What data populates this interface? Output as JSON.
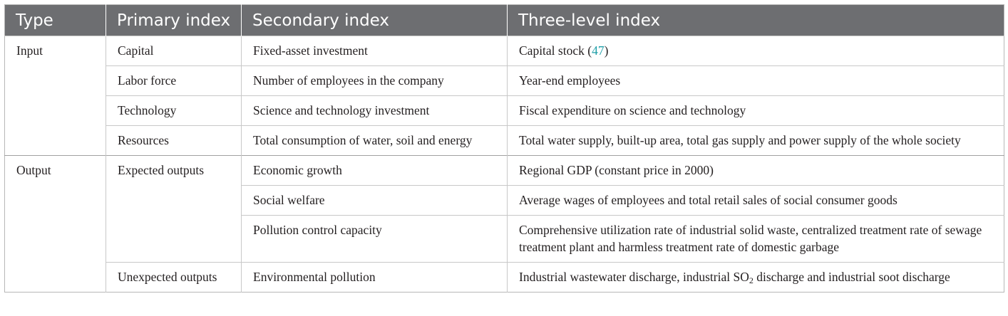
{
  "headers": [
    "Type",
    "Primary index",
    "Secondary index",
    "Three-level index"
  ],
  "groups": [
    {
      "type": "Input",
      "rows": [
        {
          "primary": "Capital",
          "secondary": "Fixed-asset investment",
          "three_prefix": "Capital stock (",
          "three_ref": "47",
          "three_suffix": ")"
        },
        {
          "primary": "Labor force",
          "secondary": "Number of employees in the company",
          "three": "Year-end employees"
        },
        {
          "primary": "Technology",
          "secondary": "Science and technology investment",
          "three": "Fiscal expenditure on science and technology"
        },
        {
          "primary": "Resources",
          "secondary": "Total consumption of water, soil and energy",
          "three": "Total water supply, built-up area, total gas supply and power supply of the whole society"
        }
      ]
    },
    {
      "type": "Output",
      "expected": "Expected outputs",
      "expected_rows": [
        {
          "secondary": "Economic growth",
          "three": "Regional GDP (constant price in 2000)"
        },
        {
          "secondary": "Social welfare",
          "three": "Average wages of employees and total retail sales of social consumer goods"
        },
        {
          "secondary": "Pollution control capacity",
          "three": "Comprehensive utilization rate of industrial solid waste, centralized treatment rate of sewage treatment plant and harmless treatment rate of domestic garbage"
        }
      ],
      "unexpected": "Unexpected outputs",
      "unexpected_row": {
        "secondary": "Environmental pollution",
        "three_a": "Industrial wastewater discharge, industrial SO",
        "three_sub": "2",
        "three_b": " discharge and industrial soot discharge"
      }
    }
  ]
}
